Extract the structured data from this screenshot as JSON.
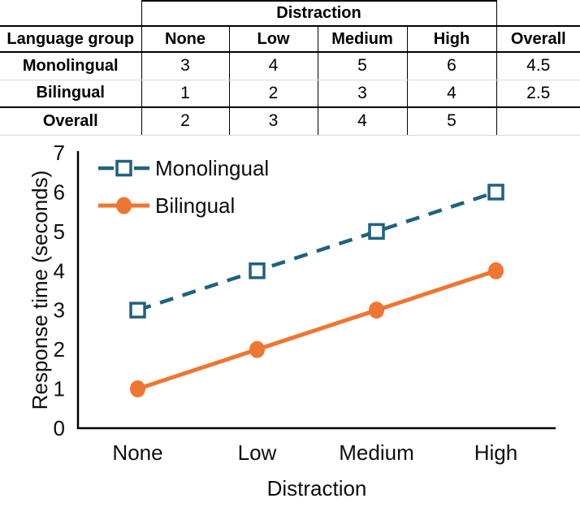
{
  "table": {
    "span_header": "Distraction",
    "columns": [
      "Language group",
      "None",
      "Low",
      "Medium",
      "High",
      "Overall"
    ],
    "rows": [
      {
        "label": "Monolingual",
        "values": [
          "3",
          "4",
          "5",
          "6",
          "4.5"
        ]
      },
      {
        "label": "Bilingual",
        "values": [
          "1",
          "2",
          "3",
          "4",
          "2.5"
        ]
      },
      {
        "label": "Overall",
        "values": [
          "2",
          "3",
          "4",
          "5",
          ""
        ]
      }
    ]
  },
  "chart_data": {
    "type": "line",
    "categories": [
      "None",
      "Low",
      "Medium",
      "High"
    ],
    "series": [
      {
        "name": "Monolingual",
        "values": [
          3,
          4,
          5,
          6
        ],
        "color": "#20627E",
        "style": "dashed",
        "marker": "open-square"
      },
      {
        "name": "Bilingual",
        "values": [
          1,
          2,
          3,
          4
        ],
        "color": "#EE7632",
        "style": "solid",
        "marker": "filled-circle"
      }
    ],
    "xlabel": "Distraction",
    "ylabel": "Response time (seconds)",
    "ylim": [
      0,
      7
    ],
    "yticks": [
      0,
      1,
      2,
      3,
      4,
      5,
      6,
      7
    ],
    "grid": false,
    "legend_position": "top-left"
  }
}
